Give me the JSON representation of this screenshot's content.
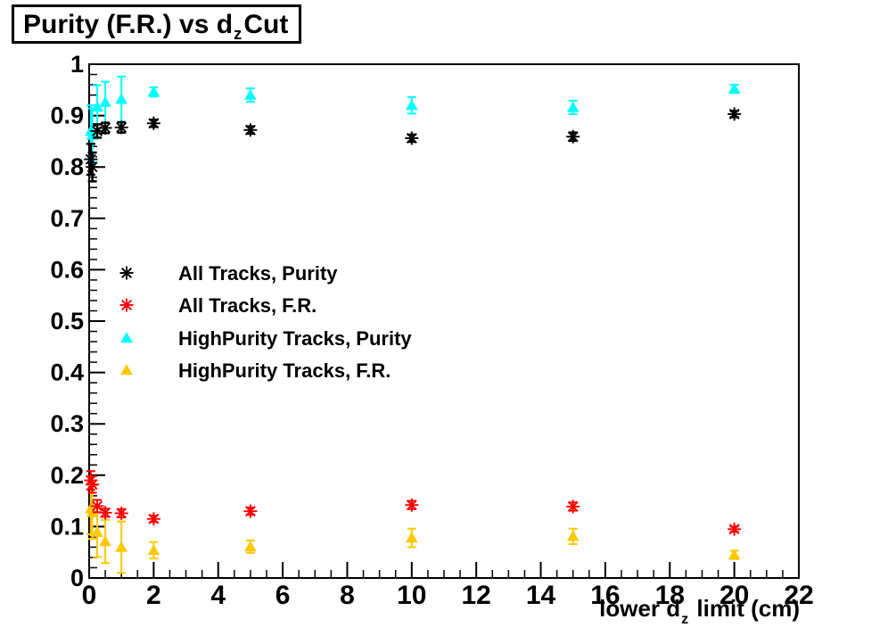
{
  "window": {
    "kind": "root-style-plot-canvas"
  },
  "title": {
    "full": "Purity (F.R.) vs d_z Cut",
    "prefix": "Purity (F.R.) vs d",
    "sub": "z",
    "suffix": "Cut"
  },
  "x_axis_title": {
    "full": "lower d_z limit (cm)",
    "prefix": "lower d",
    "sub": "z",
    "suffix": " limit (cm)"
  },
  "colors": {
    "frame": "#000000",
    "background": "#ffffff",
    "all_tracks_purity": "#000000",
    "all_tracks_fr": "#ff0000",
    "highpurity_purity": "#00ffff",
    "highpurity_fr": "#ffc800"
  },
  "chart_data": {
    "type": "scatter",
    "title": "Purity (F.R.) vs d_z Cut",
    "xlabel": "lower d_z limit (cm)",
    "ylabel": "",
    "xlim": [
      0,
      22
    ],
    "ylim": [
      0,
      1
    ],
    "grid": false,
    "error_bars": true,
    "error_bar_caps": true,
    "legend_position": "inside-left-middle",
    "x_major_ticks": [
      0,
      2,
      4,
      6,
      8,
      10,
      12,
      14,
      16,
      18,
      20,
      22
    ],
    "x_tick_labels": [
      "0",
      "2",
      "4",
      "6",
      "8",
      "10",
      "12",
      "14",
      "16",
      "18",
      "20",
      "22"
    ],
    "x_minor_step": 0.5,
    "y_major_ticks": [
      0,
      0.1,
      0.2,
      0.3,
      0.4,
      0.5,
      0.6,
      0.7,
      0.8,
      0.9,
      1
    ],
    "y_tick_labels": [
      "0",
      "0.1",
      "0.2",
      "0.3",
      "0.4",
      "0.5",
      "0.6",
      "0.7",
      "0.8",
      "0.9",
      "1"
    ],
    "y_minor_step": 0.02,
    "x": [
      0.05,
      0.1,
      0.25,
      0.5,
      1,
      2,
      5,
      10,
      15,
      20
    ],
    "series": [
      {
        "name": "All Tracks, Purity",
        "marker": "star",
        "color": "#000000",
        "y": [
          0.815,
          0.8,
          0.87,
          0.876,
          0.877,
          0.885,
          0.872,
          0.856,
          0.859,
          0.903
        ],
        "yerr": [
          0.03,
          0.028,
          0.013,
          0.01,
          0.01,
          0.007,
          0.007,
          0.007,
          0.008,
          0.006
        ]
      },
      {
        "name": "All Tracks, F.R.",
        "marker": "star",
        "color": "#ff0000",
        "y": [
          0.19,
          0.182,
          0.14,
          0.127,
          0.126,
          0.115,
          0.13,
          0.142,
          0.139,
          0.095
        ],
        "yerr": [
          0.018,
          0.016,
          0.012,
          0.008,
          0.008,
          0.006,
          0.007,
          0.008,
          0.008,
          0.005
        ]
      },
      {
        "name": "HighPurity Tracks, Purity",
        "marker": "triangle",
        "color": "#00ffff",
        "y": [
          0.87,
          0.862,
          0.917,
          0.926,
          0.932,
          0.946,
          0.94,
          0.92,
          0.916,
          0.952
        ],
        "yerr": [
          0.05,
          0.052,
          0.042,
          0.04,
          0.044,
          0.009,
          0.013,
          0.016,
          0.013,
          0.008
        ]
      },
      {
        "name": "HighPurity Tracks, F.R.",
        "marker": "triangle",
        "color": "#ffc800",
        "y": [
          0.135,
          0.128,
          0.089,
          0.071,
          0.06,
          0.054,
          0.061,
          0.078,
          0.081,
          0.045
        ],
        "yerr": [
          0.05,
          0.052,
          0.048,
          0.042,
          0.05,
          0.016,
          0.012,
          0.018,
          0.015,
          0.008
        ]
      }
    ]
  }
}
